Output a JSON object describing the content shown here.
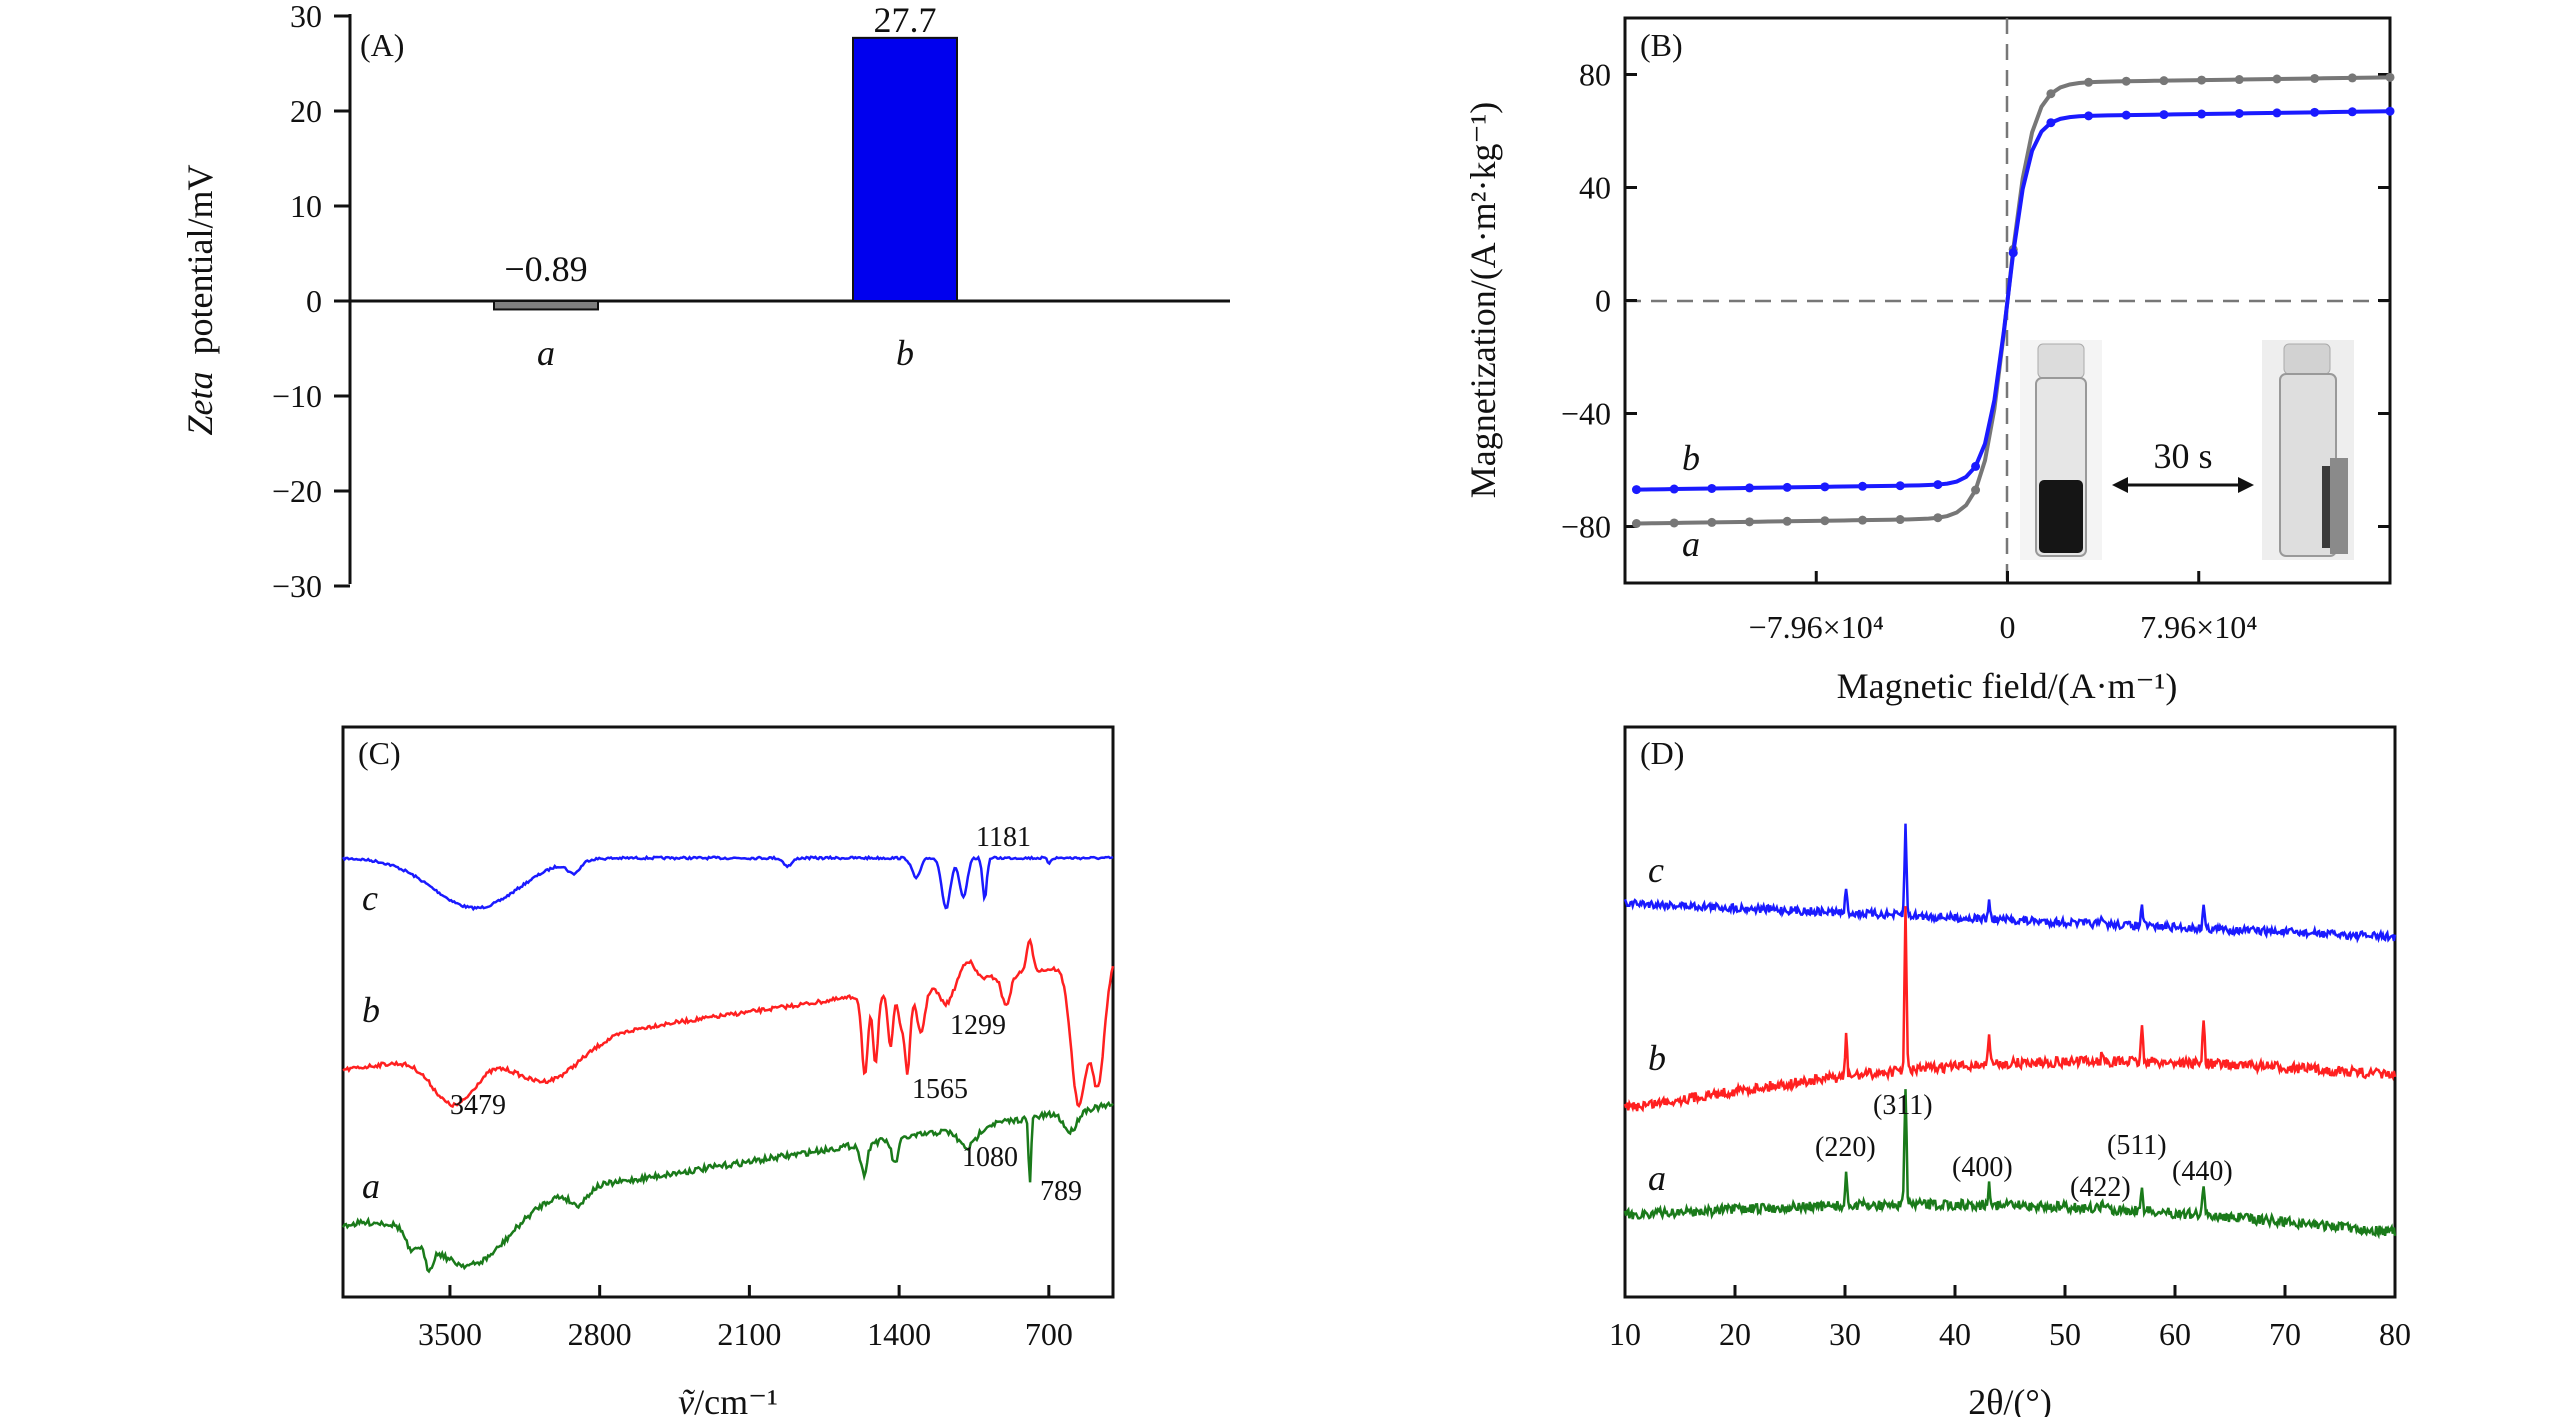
{
  "chart_data": [
    {
      "id": "A",
      "type": "bar",
      "panel_label": "(A)",
      "title": "",
      "xlabel": "",
      "ylabel": "potential/mV",
      "ylabel_italic_prefix": "Zeta",
      "categories": [
        "a",
        "b"
      ],
      "values": [
        -0.89,
        27.7
      ],
      "value_labels": [
        "−0.89",
        "27.7"
      ],
      "colors": [
        "#7f7f7f",
        "#0000ee"
      ],
      "ylim": [
        -30,
        30
      ],
      "yticks": [
        30,
        20,
        10,
        0,
        -10,
        -20,
        -30
      ],
      "ytick_labels": [
        "30",
        "20",
        "10",
        "0",
        "−10",
        "−20",
        "−30"
      ]
    },
    {
      "id": "B",
      "type": "line",
      "panel_label": "(B)",
      "xlabel": "Magnetic field/(A·m⁻¹)",
      "ylabel": "Magnetization/(A·m²·kg⁻¹)",
      "xlim": [
        -159200,
        159200
      ],
      "ylim": [
        -100,
        100
      ],
      "xtick_values": [
        -79600,
        0,
        79600
      ],
      "xtick_labels": [
        "−7.96×10⁴",
        "0",
        "7.96×10⁴"
      ],
      "yticks": [
        80,
        40,
        0,
        -40,
        -80
      ],
      "ytick_labels": [
        "80",
        "40",
        "0",
        "−40",
        "−80"
      ],
      "series": [
        {
          "name": "a",
          "color": "#777777",
          "saturation": 77,
          "slope_width": 10000,
          "ms_low": -77
        },
        {
          "name": "b",
          "color": "#1a1aff",
          "saturation": 65,
          "slope_width": 9000,
          "ms_low": -66
        }
      ],
      "inset_annotation": "30 s"
    },
    {
      "id": "C",
      "type": "line",
      "panel_label": "(C)",
      "xlabel": "/cm⁻¹",
      "xlabel_symbol": "ṽ",
      "ylabel": "",
      "xlim": [
        4000,
        400
      ],
      "xticks": [
        3500,
        2800,
        2100,
        1400,
        700
      ],
      "xtick_labels": [
        "3500",
        "2800",
        "2100",
        "1400",
        "700"
      ],
      "series": [
        {
          "name": "c",
          "color": "#1a1aff"
        },
        {
          "name": "b",
          "color": "#ff2020"
        },
        {
          "name": "a",
          "color": "#1a7a1a"
        }
      ],
      "annotations": [
        "1181",
        "1299",
        "3479",
        "1565",
        "1080",
        "789"
      ]
    },
    {
      "id": "D",
      "type": "line",
      "panel_label": "(D)",
      "xlabel": "2θ/(°)",
      "ylabel": "",
      "xlim": [
        10,
        80
      ],
      "xticks": [
        10,
        20,
        30,
        40,
        50,
        60,
        70,
        80
      ],
      "xtick_labels": [
        "10",
        "20",
        "30",
        "40",
        "50",
        "60",
        "70",
        "80"
      ],
      "peaks": [
        30.1,
        35.5,
        43.1,
        53.4,
        57.0,
        62.6
      ],
      "series": [
        {
          "name": "c",
          "color": "#1a1aff"
        },
        {
          "name": "b",
          "color": "#ff2020"
        },
        {
          "name": "a",
          "color": "#1a7a1a"
        }
      ],
      "annotations": [
        "(311)",
        "(220)",
        "(400)",
        "(511)",
        "(422)",
        "(440)"
      ]
    }
  ]
}
